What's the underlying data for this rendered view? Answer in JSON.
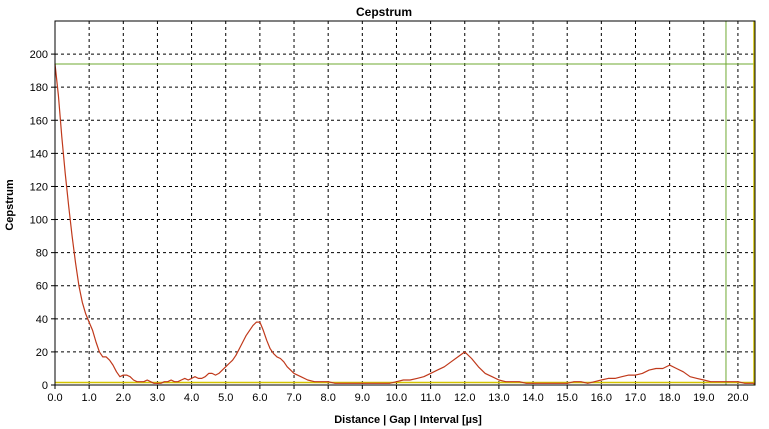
{
  "chart_data": {
    "type": "line",
    "title": "Cepstrum",
    "xlabel": "Distance | Gap | Interval [µs]",
    "ylabel": "Cepstrum",
    "xlim": [
      0,
      20.5
    ],
    "ylim": [
      0,
      220
    ],
    "xticks": [
      "0.0",
      "1.0",
      "2.0",
      "3.0",
      "4.0",
      "5.0",
      "6.0",
      "7.0",
      "8.0",
      "9.0",
      "10.0",
      "11.0",
      "12.0",
      "13.0",
      "14.0",
      "15.0",
      "16.0",
      "17.0",
      "18.0",
      "19.0",
      "20.0"
    ],
    "yticks": [
      "0",
      "20",
      "40",
      "60",
      "80",
      "100",
      "120",
      "140",
      "160",
      "180",
      "200"
    ],
    "grid": true,
    "series": [
      {
        "color": "#c0391b",
        "x": [
          0.0,
          0.1,
          0.2,
          0.3,
          0.4,
          0.5,
          0.6,
          0.7,
          0.8,
          0.9,
          1.0,
          1.1,
          1.2,
          1.3,
          1.4,
          1.5,
          1.6,
          1.7,
          1.8,
          1.9,
          2.0,
          2.1,
          2.2,
          2.3,
          2.4,
          2.5,
          2.6,
          2.7,
          2.8,
          2.9,
          3.0,
          3.1,
          3.2,
          3.3,
          3.4,
          3.5,
          3.6,
          3.7,
          3.8,
          3.9,
          4.0,
          4.1,
          4.2,
          4.3,
          4.4,
          4.5,
          4.6,
          4.7,
          4.8,
          4.9,
          5.0,
          5.1,
          5.2,
          5.3,
          5.4,
          5.5,
          5.6,
          5.7,
          5.8,
          5.9,
          6.0,
          6.1,
          6.2,
          6.3,
          6.4,
          6.5,
          6.6,
          6.7,
          6.8,
          6.9,
          7.0,
          7.2,
          7.4,
          7.6,
          7.8,
          8.0,
          8.2,
          8.4,
          8.6,
          8.8,
          9.0,
          9.2,
          9.4,
          9.6,
          9.8,
          10.0,
          10.2,
          10.4,
          10.6,
          10.8,
          11.0,
          11.2,
          11.4,
          11.6,
          11.8,
          12.0,
          12.2,
          12.4,
          12.6,
          12.8,
          13.0,
          13.2,
          13.4,
          13.6,
          13.8,
          14.0,
          14.2,
          14.4,
          14.6,
          14.8,
          15.0,
          15.2,
          15.4,
          15.6,
          15.8,
          16.0,
          16.2,
          16.4,
          16.6,
          16.8,
          17.0,
          17.2,
          17.4,
          17.6,
          17.8,
          18.0,
          18.2,
          18.4,
          18.6,
          18.8,
          19.0,
          19.2,
          19.4,
          19.6,
          19.8,
          20.0,
          20.2,
          20.5
        ],
        "y": [
          194,
          175,
          150,
          128,
          108,
          90,
          74,
          60,
          50,
          43,
          38,
          33,
          26,
          20,
          17,
          17,
          15,
          12,
          8,
          5,
          6,
          6,
          5,
          3,
          2,
          2,
          2,
          3,
          2,
          1,
          1,
          1,
          2,
          2,
          3,
          2,
          2,
          3,
          4,
          3,
          4,
          5,
          4,
          4,
          5,
          7,
          7,
          6,
          7,
          9,
          11,
          13,
          15,
          18,
          22,
          26,
          30,
          33,
          36,
          38,
          38,
          33,
          27,
          22,
          19,
          17,
          16,
          14,
          11,
          9,
          7,
          5,
          3,
          2,
          2,
          2,
          1,
          1,
          1,
          1,
          1,
          1,
          1,
          1,
          1,
          2,
          3,
          3,
          4,
          5,
          7,
          9,
          11,
          14,
          17,
          20,
          16,
          11,
          7,
          5,
          3,
          2,
          2,
          2,
          1,
          1,
          1,
          1,
          1,
          1,
          1,
          2,
          2,
          1,
          2,
          3,
          4,
          4,
          5,
          6,
          6,
          7,
          9,
          10,
          10,
          12,
          10,
          8,
          5,
          4,
          3,
          2,
          2,
          2,
          2,
          2,
          1,
          1
        ]
      }
    ],
    "reference_lines": {
      "horizontal_top": 194,
      "horizontal_bottom": 1.5,
      "vertical": 19.65,
      "color": "#6fa832",
      "baseline_color": "#d4c400"
    }
  }
}
